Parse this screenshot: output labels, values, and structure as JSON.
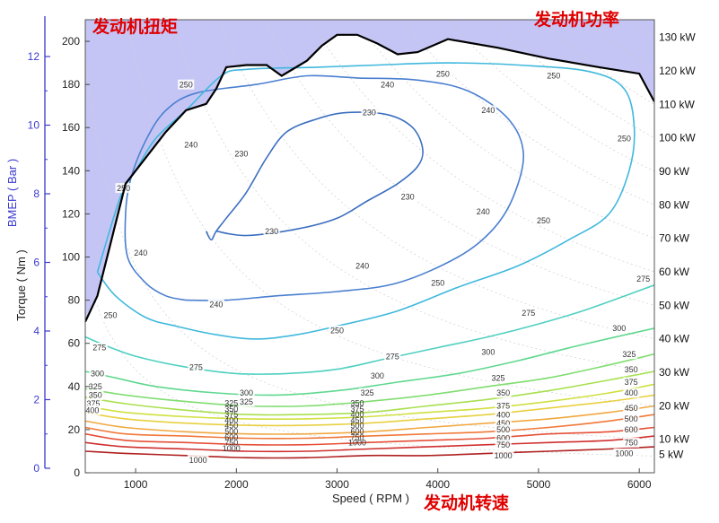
{
  "annotations": {
    "torque": "发动机扭矩",
    "power": "发动机功率",
    "speed": "发动机转速"
  },
  "chart_data": {
    "type": "contour",
    "xlabel": "Speed ( RPM )",
    "ylabel": "Torque ( Nm )",
    "y2label": "BMEP ( Bar )",
    "xlim": [
      500,
      6150
    ],
    "ylim": [
      0,
      210
    ],
    "xticks": [
      1000,
      2000,
      3000,
      4000,
      5000,
      6000
    ],
    "yticks": [
      0,
      20,
      40,
      60,
      80,
      100,
      120,
      140,
      160,
      180,
      200
    ],
    "bmep_ticks": [
      0,
      2,
      4,
      6,
      8,
      10,
      12
    ],
    "power_lines_kw": [
      5,
      10,
      20,
      30,
      40,
      50,
      60,
      70,
      80,
      90,
      100,
      110,
      120,
      130
    ],
    "colors": {
      "fill_above_max": "#c5c5f5",
      "max_torque_line": "#000000",
      "bmep_axis": "#3a3ad0",
      "annotation": "#e00000"
    },
    "max_torque_curve": [
      [
        500,
        70
      ],
      [
        620,
        82
      ],
      [
        900,
        134
      ],
      [
        1100,
        146
      ],
      [
        1300,
        158
      ],
      [
        1500,
        168
      ],
      [
        1700,
        171
      ],
      [
        1800,
        178
      ],
      [
        1900,
        188
      ],
      [
        2100,
        189
      ],
      [
        2300,
        189
      ],
      [
        2450,
        184
      ],
      [
        2700,
        191
      ],
      [
        2850,
        198
      ],
      [
        3000,
        203
      ],
      [
        3200,
        203
      ],
      [
        3400,
        199
      ],
      [
        3600,
        194
      ],
      [
        3800,
        195
      ],
      [
        4100,
        201
      ],
      [
        4600,
        197
      ],
      [
        5100,
        192
      ],
      [
        5600,
        188
      ],
      [
        6000,
        185
      ],
      [
        6150,
        172
      ]
    ],
    "contours": [
      {
        "level": 230,
        "color": "#3b6fc0",
        "points": [
          [
            1700,
            112
          ],
          [
            1750,
            108
          ],
          [
            1800,
            112
          ],
          [
            1900,
            118
          ],
          [
            2100,
            130
          ],
          [
            2300,
            146
          ],
          [
            2500,
            158
          ],
          [
            2800,
            164
          ],
          [
            3100,
            167
          ],
          [
            3500,
            166
          ],
          [
            3750,
            160
          ],
          [
            3850,
            150
          ],
          [
            3800,
            142
          ],
          [
            3600,
            134
          ],
          [
            3300,
            126
          ],
          [
            3000,
            118
          ],
          [
            2600,
            113
          ],
          [
            2100,
            110
          ],
          [
            1800,
            112
          ]
        ]
      },
      {
        "level": 240,
        "color": "#4a7fd0",
        "points": [
          [
            1500,
            80
          ],
          [
            1300,
            82
          ],
          [
            1100,
            88
          ],
          [
            920,
            100
          ],
          [
            900,
            120
          ],
          [
            950,
            136
          ],
          [
            1100,
            154
          ],
          [
            1300,
            168
          ],
          [
            1600,
            176
          ],
          [
            2200,
            180
          ],
          [
            2700,
            184
          ],
          [
            3200,
            183
          ],
          [
            3800,
            182
          ],
          [
            4300,
            177
          ],
          [
            4700,
            164
          ],
          [
            4850,
            148
          ],
          [
            4750,
            128
          ],
          [
            4550,
            113
          ],
          [
            4200,
            100
          ],
          [
            3600,
            88
          ],
          [
            3000,
            84
          ],
          [
            2400,
            82
          ],
          [
            1900,
            80
          ],
          [
            1500,
            80
          ]
        ]
      },
      {
        "level": 250,
        "color": "#40b8dd",
        "points": [
          [
            620,
            93
          ],
          [
            800,
            82
          ],
          [
            1100,
            72
          ],
          [
            1400,
            68
          ],
          [
            1800,
            64
          ],
          [
            2200,
            62
          ],
          [
            2600,
            64
          ],
          [
            3000,
            68
          ],
          [
            3600,
            75
          ],
          [
            4200,
            86
          ],
          [
            4800,
            96
          ],
          [
            5300,
            108
          ],
          [
            5700,
            120
          ],
          [
            5900,
            140
          ],
          [
            5950,
            160
          ],
          [
            5850,
            178
          ],
          [
            5500,
            186
          ],
          [
            4800,
            189
          ],
          [
            4100,
            190
          ],
          [
            3400,
            189
          ],
          [
            2800,
            188
          ],
          [
            2100,
            187
          ],
          [
            1850,
            184
          ],
          [
            1500,
            168
          ],
          [
            1200,
            155
          ],
          [
            1000,
            140
          ],
          [
            850,
            128
          ],
          [
            620,
            93
          ]
        ]
      },
      {
        "level": 275,
        "color": "#4fd0c0",
        "points": [
          [
            500,
            63
          ],
          [
            700,
            59
          ],
          [
            1000,
            54
          ],
          [
            1500,
            49
          ],
          [
            2000,
            46
          ],
          [
            2500,
            46
          ],
          [
            3000,
            48
          ],
          [
            3500,
            53
          ],
          [
            4000,
            58
          ],
          [
            4500,
            63
          ],
          [
            5000,
            69
          ],
          [
            5500,
            76
          ],
          [
            6150,
            87
          ]
        ]
      },
      {
        "level": 300,
        "color": "#60d890",
        "points": [
          [
            500,
            47
          ],
          [
            800,
            44
          ],
          [
            1200,
            40
          ],
          [
            1800,
            37
          ],
          [
            2400,
            36
          ],
          [
            3000,
            38
          ],
          [
            3600,
            42
          ],
          [
            4200,
            46
          ],
          [
            4800,
            52
          ],
          [
            5400,
            59
          ],
          [
            6150,
            67
          ]
        ]
      },
      {
        "level": 325,
        "color": "#80dd70",
        "points": [
          [
            500,
            39
          ],
          [
            900,
            36
          ],
          [
            1500,
            33
          ],
          [
            2100,
            31
          ],
          [
            2700,
            31
          ],
          [
            3300,
            33
          ],
          [
            3900,
            36
          ],
          [
            4500,
            40
          ],
          [
            5100,
            44
          ],
          [
            5700,
            50
          ],
          [
            6150,
            55
          ]
        ]
      },
      {
        "level": 350,
        "color": "#a8e050",
        "points": [
          [
            500,
            35
          ],
          [
            900,
            32
          ],
          [
            1500,
            29
          ],
          [
            2100,
            27
          ],
          [
            2700,
            27
          ],
          [
            3300,
            28
          ],
          [
            3900,
            31
          ],
          [
            4500,
            34
          ],
          [
            5100,
            38
          ],
          [
            5700,
            43
          ],
          [
            6150,
            47
          ]
        ]
      },
      {
        "level": 375,
        "color": "#d0e040",
        "points": [
          [
            500,
            31
          ],
          [
            900,
            28
          ],
          [
            1500,
            26
          ],
          [
            2100,
            25
          ],
          [
            2700,
            25
          ],
          [
            3300,
            26
          ],
          [
            3900,
            28
          ],
          [
            4500,
            30
          ],
          [
            5100,
            33
          ],
          [
            5700,
            37
          ],
          [
            6150,
            41
          ]
        ]
      },
      {
        "level": 400,
        "color": "#e8d040",
        "points": [
          [
            500,
            28
          ],
          [
            900,
            25
          ],
          [
            1500,
            23
          ],
          [
            2100,
            22
          ],
          [
            2700,
            22
          ],
          [
            3300,
            23
          ],
          [
            3900,
            25
          ],
          [
            4500,
            27
          ],
          [
            5100,
            30
          ],
          [
            5700,
            33
          ],
          [
            6150,
            36
          ]
        ]
      },
      {
        "level": 450,
        "color": "#f0a840",
        "points": [
          [
            500,
            24
          ],
          [
            900,
            21
          ],
          [
            1500,
            19
          ],
          [
            2100,
            18
          ],
          [
            2700,
            18
          ],
          [
            3300,
            19
          ],
          [
            3900,
            21
          ],
          [
            4500,
            23
          ],
          [
            5100,
            25
          ],
          [
            5700,
            28
          ],
          [
            6150,
            31
          ]
        ]
      },
      {
        "level": 500,
        "color": "#f07838",
        "points": [
          [
            500,
            21
          ],
          [
            900,
            18
          ],
          [
            1500,
            17
          ],
          [
            2100,
            16
          ],
          [
            2700,
            16
          ],
          [
            3300,
            17
          ],
          [
            3900,
            18
          ],
          [
            4500,
            19
          ],
          [
            5100,
            21
          ],
          [
            5700,
            24
          ],
          [
            6150,
            27
          ]
        ]
      },
      {
        "level": 600,
        "color": "#e55038",
        "points": [
          [
            500,
            18
          ],
          [
            900,
            15
          ],
          [
            1500,
            14
          ],
          [
            2100,
            13
          ],
          [
            2700,
            13
          ],
          [
            3300,
            14
          ],
          [
            3900,
            15
          ],
          [
            4500,
            16
          ],
          [
            5100,
            18
          ],
          [
            5700,
            19
          ],
          [
            6150,
            21
          ]
        ]
      },
      {
        "level": 750,
        "color": "#d03030",
        "points": [
          [
            500,
            14
          ],
          [
            900,
            12
          ],
          [
            1500,
            11
          ],
          [
            2100,
            10
          ],
          [
            2700,
            10
          ],
          [
            3300,
            11
          ],
          [
            3900,
            12
          ],
          [
            4500,
            13
          ],
          [
            5100,
            14
          ],
          [
            5700,
            15
          ],
          [
            6150,
            17
          ]
        ]
      },
      {
        "level": 1000,
        "color": "#b02020",
        "points": [
          [
            500,
            10
          ],
          [
            900,
            9
          ],
          [
            1500,
            8
          ],
          [
            2100,
            7
          ],
          [
            2700,
            7
          ],
          [
            3300,
            8
          ],
          [
            3900,
            8
          ],
          [
            4500,
            9
          ],
          [
            5100,
            10
          ],
          [
            5700,
            11
          ],
          [
            6150,
            12
          ]
        ]
      }
    ],
    "contour_labels": [
      {
        "text": "230",
        "x": 2350,
        "y": 112
      },
      {
        "text": "230",
        "x": 2050,
        "y": 148
      },
      {
        "text": "230",
        "x": 3320,
        "y": 167
      },
      {
        "text": "230",
        "x": 3700,
        "y": 128
      },
      {
        "text": "240",
        "x": 1550,
        "y": 152
      },
      {
        "text": "240",
        "x": 3500,
        "y": 180
      },
      {
        "text": "240",
        "x": 1050,
        "y": 102
      },
      {
        "text": "240",
        "x": 1800,
        "y": 78
      },
      {
        "text": "240",
        "x": 4500,
        "y": 168
      },
      {
        "text": "240",
        "x": 4450,
        "y": 121
      },
      {
        "text": "240",
        "x": 3250,
        "y": 96
      },
      {
        "text": "250",
        "x": 1500,
        "y": 180
      },
      {
        "text": "250",
        "x": 4050,
        "y": 185
      },
      {
        "text": "250",
        "x": 5150,
        "y": 184
      },
      {
        "text": "250",
        "x": 5850,
        "y": 155
      },
      {
        "text": "250",
        "x": 880,
        "y": 132
      },
      {
        "text": "250",
        "x": 750,
        "y": 73
      },
      {
        "text": "250",
        "x": 3000,
        "y": 66
      },
      {
        "text": "250",
        "x": 4000,
        "y": 88
      },
      {
        "text": "250",
        "x": 5050,
        "y": 117
      },
      {
        "text": "275",
        "x": 1600,
        "y": 49
      },
      {
        "text": "275",
        "x": 3550,
        "y": 54
      },
      {
        "text": "275",
        "x": 4900,
        "y": 74
      },
      {
        "text": "275",
        "x": 6040,
        "y": 90
      },
      {
        "text": "275",
        "x": 640,
        "y": 58
      },
      {
        "text": "300",
        "x": 2100,
        "y": 37
      },
      {
        "text": "300",
        "x": 3400,
        "y": 45
      },
      {
        "text": "300",
        "x": 4500,
        "y": 56
      },
      {
        "text": "300",
        "x": 5800,
        "y": 67
      },
      {
        "text": "300",
        "x": 620,
        "y": 46
      },
      {
        "text": "325",
        "x": 3300,
        "y": 37
      },
      {
        "text": "325",
        "x": 4600,
        "y": 44
      },
      {
        "text": "325",
        "x": 5900,
        "y": 55
      },
      {
        "text": "325",
        "x": 2100,
        "y": 33
      },
      {
        "text": "325",
        "x": 600,
        "y": 40
      },
      {
        "text": "350",
        "x": 5920,
        "y": 48
      },
      {
        "text": "350",
        "x": 4650,
        "y": 37
      },
      {
        "text": "350",
        "x": 600,
        "y": 36
      },
      {
        "text": "375",
        "x": 5920,
        "y": 42
      },
      {
        "text": "375",
        "x": 4650,
        "y": 31
      },
      {
        "text": "375",
        "x": 580,
        "y": 32
      },
      {
        "text": "400",
        "x": 5920,
        "y": 37
      },
      {
        "text": "400",
        "x": 4650,
        "y": 27
      },
      {
        "text": "400",
        "x": 570,
        "y": 29
      },
      {
        "text": "450",
        "x": 5920,
        "y": 30
      },
      {
        "text": "450",
        "x": 4650,
        "y": 23
      },
      {
        "text": "500",
        "x": 5920,
        "y": 25
      },
      {
        "text": "500",
        "x": 4650,
        "y": 20
      },
      {
        "text": "600",
        "x": 5920,
        "y": 20
      },
      {
        "text": "600",
        "x": 4650,
        "y": 16
      },
      {
        "text": "750",
        "x": 5920,
        "y": 14
      },
      {
        "text": "750",
        "x": 4650,
        "y": 13
      },
      {
        "text": "1000",
        "x": 5850,
        "y": 9
      },
      {
        "text": "1000",
        "x": 4650,
        "y": 8
      },
      {
        "text": "1000",
        "x": 1620,
        "y": 6
      }
    ],
    "stacked_label_columns": [
      {
        "x": 1950,
        "labels": [
          "325",
          "350",
          "375",
          "400",
          "450",
          "500",
          "600",
          "750",
          "1000"
        ]
      },
      {
        "x": 3200,
        "labels": [
          "350",
          "375",
          "400",
          "450",
          "500",
          "600",
          "750",
          "1000"
        ]
      }
    ]
  }
}
